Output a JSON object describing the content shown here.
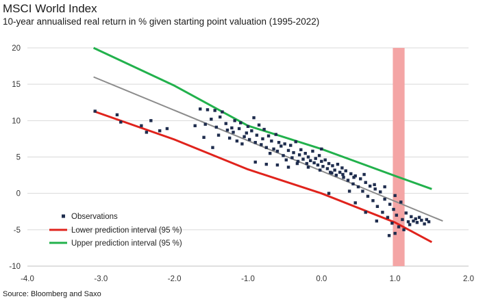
{
  "header": {
    "title": "MSCI World Index",
    "subtitle": "10-year annualised real return in % given starting point valuation (1995-2022)"
  },
  "footer": {
    "source": "Source: Bloomberg and Saxo"
  },
  "colors": {
    "observations": "#1f2d4e",
    "lower": "#e0231c",
    "upper": "#22b14c",
    "trend": "#8c8c8c",
    "band": "#f4a5a5",
    "grid": "#d9d9d9"
  },
  "chart_data": {
    "type": "scatter",
    "title": "MSCI World Index",
    "subtitle": "10-year annualised real return in % given starting point valuation (1995-2022)",
    "xlim": [
      -4.0,
      2.0
    ],
    "ylim": [
      -10,
      20
    ],
    "x_ticks": [
      "-4.0",
      "-3.0",
      "-2.0",
      "-1.0",
      "0.0",
      "1.0",
      "2.0"
    ],
    "y_ticks": [
      "20",
      "15",
      "10",
      "5",
      "0",
      "-5",
      "-10"
    ],
    "grid": "horizontal",
    "legend_position": "bottom-left",
    "legend": [
      "Observations",
      "Lower prediction interval (95 %)",
      "Upper prediction interval (95 %)"
    ],
    "highlight_band": {
      "x_range": [
        0.97,
        1.13
      ]
    },
    "series": [
      {
        "name": "Observations",
        "kind": "scatter",
        "points": [
          [
            -3.08,
            11.3
          ],
          [
            -2.78,
            10.8
          ],
          [
            -2.73,
            9.8
          ],
          [
            -2.45,
            9.3
          ],
          [
            -2.38,
            8.4
          ],
          [
            -2.32,
            10.0
          ],
          [
            -2.2,
            8.6
          ],
          [
            -2.1,
            8.9
          ],
          [
            -1.65,
            11.6
          ],
          [
            -1.58,
            9.5
          ],
          [
            -1.55,
            11.5
          ],
          [
            -1.5,
            10.2
          ],
          [
            -1.45,
            11.4
          ],
          [
            -1.43,
            9.1
          ],
          [
            -1.4,
            8.0
          ],
          [
            -1.38,
            10.5
          ],
          [
            -1.35,
            11.2
          ],
          [
            -1.3,
            9.6
          ],
          [
            -1.28,
            8.7
          ],
          [
            -1.25,
            7.6
          ],
          [
            -1.22,
            9.0
          ],
          [
            -1.2,
            8.4
          ],
          [
            -1.18,
            10.0
          ],
          [
            -1.15,
            7.2
          ],
          [
            -1.12,
            8.9
          ],
          [
            -1.1,
            9.7
          ],
          [
            -1.08,
            6.8
          ],
          [
            -1.05,
            7.8
          ],
          [
            -1.02,
            8.3
          ],
          [
            -1.0,
            9.2
          ],
          [
            -0.98,
            7.4
          ],
          [
            -0.95,
            8.6
          ],
          [
            -0.92,
            10.4
          ],
          [
            -0.9,
            7.0
          ],
          [
            -0.88,
            8.0
          ],
          [
            -0.85,
            9.4
          ],
          [
            -0.82,
            6.7
          ],
          [
            -0.8,
            7.5
          ],
          [
            -0.78,
            8.8
          ],
          [
            -0.75,
            6.3
          ],
          [
            -0.72,
            7.9
          ],
          [
            -0.7,
            5.5
          ],
          [
            -0.68,
            7.2
          ],
          [
            -0.65,
            6.1
          ],
          [
            -0.62,
            8.1
          ],
          [
            -0.6,
            5.8
          ],
          [
            -0.58,
            7.0
          ],
          [
            -0.55,
            6.5
          ],
          [
            -0.52,
            5.2
          ],
          [
            -0.5,
            6.8
          ],
          [
            -0.48,
            4.6
          ],
          [
            -0.45,
            5.9
          ],
          [
            -0.42,
            6.6
          ],
          [
            -0.4,
            4.9
          ],
          [
            -0.38,
            5.6
          ],
          [
            -0.35,
            7.1
          ],
          [
            -0.32,
            4.4
          ],
          [
            -0.3,
            5.3
          ],
          [
            -0.28,
            6.0
          ],
          [
            -0.25,
            4.7
          ],
          [
            -0.22,
            5.5
          ],
          [
            -0.2,
            4.1
          ],
          [
            -0.18,
            5.0
          ],
          [
            -0.15,
            4.5
          ],
          [
            -0.12,
            5.8
          ],
          [
            -0.1,
            4.2
          ],
          [
            -0.08,
            4.8
          ],
          [
            -0.05,
            3.9
          ],
          [
            -0.03,
            5.2
          ],
          [
            0.0,
            4.4
          ],
          [
            0.02,
            3.7
          ],
          [
            0.05,
            4.6
          ],
          [
            0.08,
            3.4
          ],
          [
            0.1,
            4.1
          ],
          [
            0.12,
            2.9
          ],
          [
            0.15,
            3.8
          ],
          [
            0.18,
            3.2
          ],
          [
            0.2,
            2.5
          ],
          [
            0.22,
            4.0
          ],
          [
            0.25,
            2.9
          ],
          [
            0.28,
            3.5
          ],
          [
            0.3,
            2.2
          ],
          [
            0.33,
            3.1
          ],
          [
            0.36,
            1.8
          ],
          [
            0.4,
            2.7
          ],
          [
            0.43,
            1.3
          ],
          [
            0.46,
            2.4
          ],
          [
            0.5,
            0.9
          ],
          [
            0.53,
            2.0
          ],
          [
            0.56,
            0.3
          ],
          [
            0.6,
            1.5
          ],
          [
            0.63,
            -0.4
          ],
          [
            0.66,
            1.0
          ],
          [
            0.7,
            -1.0
          ],
          [
            0.73,
            0.6
          ],
          [
            0.76,
            -1.8
          ],
          [
            0.8,
            0.2
          ],
          [
            0.83,
            -2.6
          ],
          [
            0.86,
            -0.8
          ],
          [
            0.9,
            -3.3
          ],
          [
            0.93,
            -1.5
          ],
          [
            0.96,
            -4.1
          ],
          [
            0.98,
            -2.2
          ],
          [
            1.0,
            -0.3
          ],
          [
            1.02,
            -3.0
          ],
          [
            1.05,
            -4.6
          ],
          [
            1.08,
            -1.2
          ],
          [
            1.1,
            -3.6
          ],
          [
            1.12,
            -5.0
          ],
          [
            1.15,
            -2.7
          ],
          [
            1.18,
            -3.9
          ],
          [
            1.2,
            -4.3
          ],
          [
            1.22,
            -3.2
          ],
          [
            1.25,
            -3.8
          ],
          [
            1.28,
            -3.5
          ],
          [
            1.3,
            -4.0
          ],
          [
            1.33,
            -3.3
          ],
          [
            1.36,
            -3.7
          ],
          [
            1.4,
            -4.2
          ],
          [
            1.43,
            -3.6
          ],
          [
            1.46,
            -3.9
          ],
          [
            -0.9,
            4.3
          ],
          [
            -0.75,
            4.0
          ],
          [
            -0.6,
            3.9
          ],
          [
            -0.45,
            3.6
          ],
          [
            -0.33,
            4.1
          ],
          [
            -0.18,
            3.6
          ],
          [
            -0.02,
            3.2
          ],
          [
            0.14,
            2.8
          ],
          [
            0.29,
            2.6
          ],
          [
            0.44,
            2.2
          ],
          [
            0.58,
            2.6
          ],
          [
            0.72,
            1.2
          ],
          [
            0.86,
            0.9
          ],
          [
            0.92,
            -5.8
          ],
          [
            1.0,
            -5.5
          ],
          [
            0.75,
            -3.8
          ],
          [
            0.6,
            -2.6
          ],
          [
            0.46,
            -1.3
          ],
          [
            0.38,
            0.3
          ],
          [
            0.1,
            0.0
          ],
          [
            0.0,
            6.1
          ],
          [
            -1.48,
            6.3
          ],
          [
            -1.6,
            7.7
          ],
          [
            -1.72,
            9.3
          ]
        ]
      },
      {
        "name": "Lower prediction interval (95 %)",
        "kind": "line",
        "points": [
          [
            -3.1,
            11.3
          ],
          [
            -2.0,
            7.4
          ],
          [
            -1.0,
            3.3
          ],
          [
            0.0,
            0.0
          ],
          [
            1.0,
            -4.0
          ],
          [
            1.5,
            -6.7
          ]
        ]
      },
      {
        "name": "Upper prediction interval (95 %)",
        "kind": "line",
        "points": [
          [
            -3.1,
            20.0
          ],
          [
            -2.0,
            14.8
          ],
          [
            -1.0,
            9.3
          ],
          [
            0.0,
            6.1
          ],
          [
            1.0,
            2.4
          ],
          [
            1.5,
            0.6
          ]
        ]
      },
      {
        "kind": "line",
        "points": [
          [
            -3.1,
            16.0
          ],
          [
            1.65,
            -3.8
          ]
        ]
      }
    ]
  }
}
